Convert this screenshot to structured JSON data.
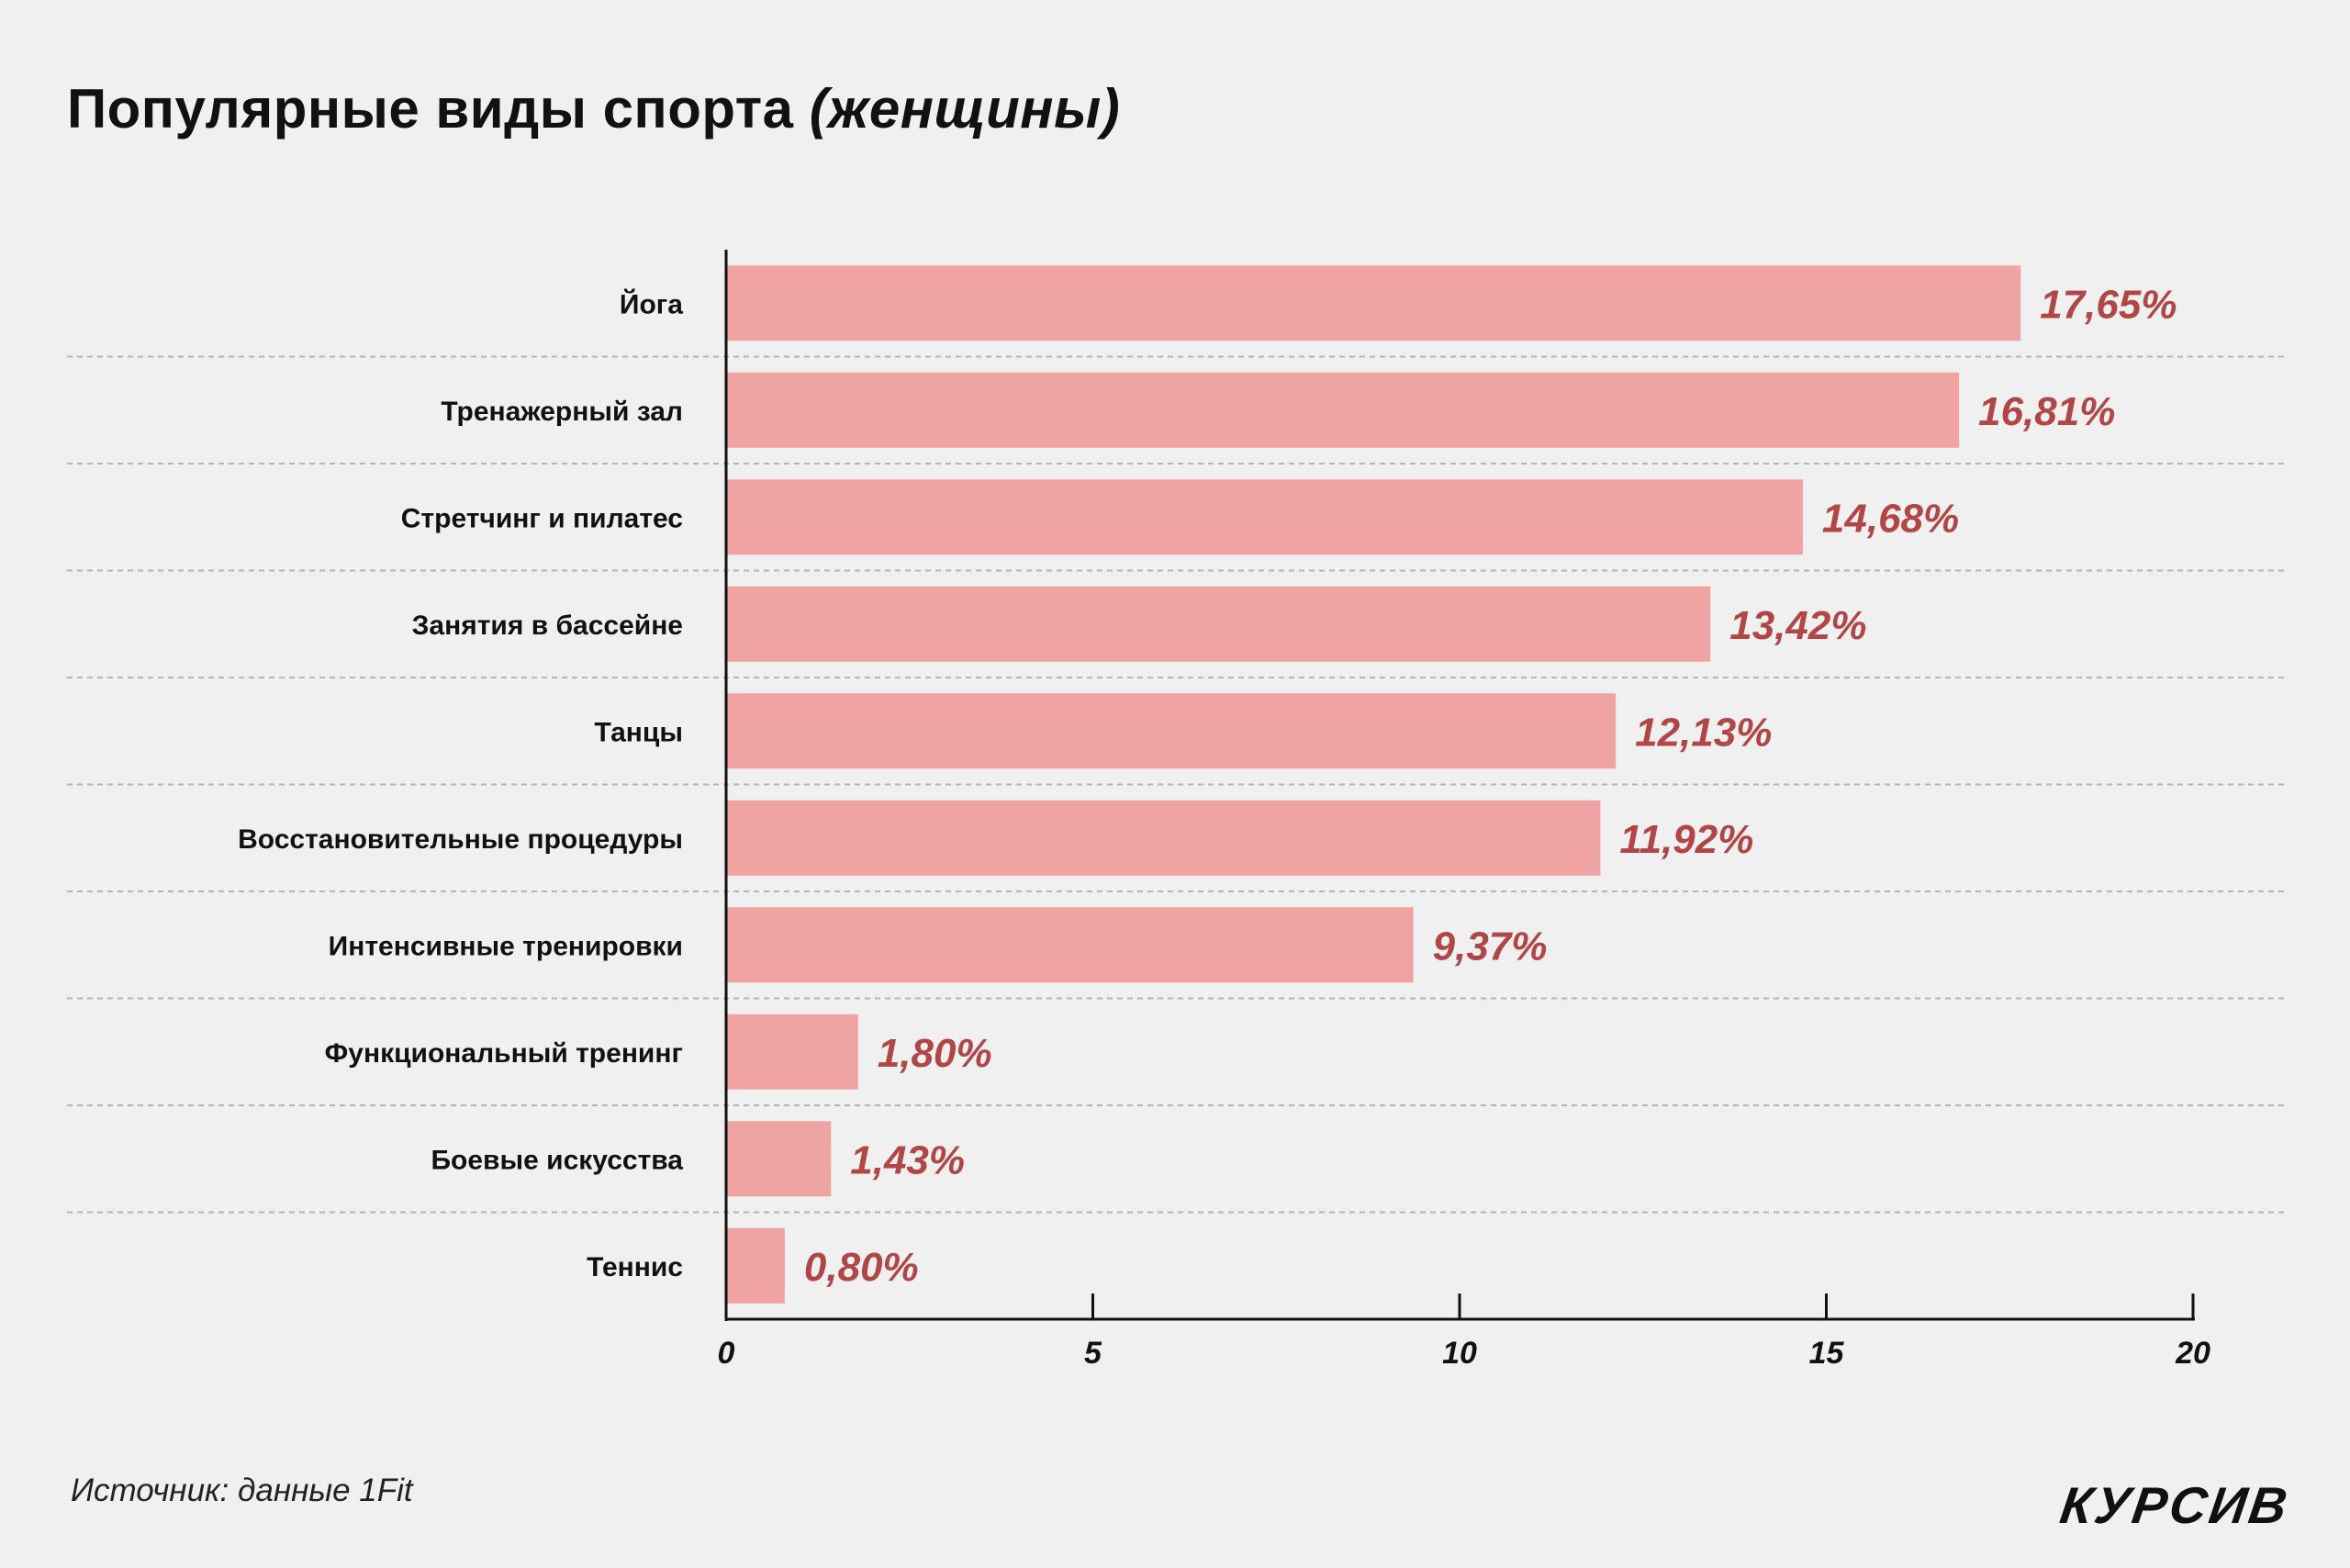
{
  "title": {
    "main": "Популярные виды спорта",
    "sub": "(женщины)"
  },
  "source": "Источник: данные 1Fit",
  "logo": "КУРСИВ",
  "colors": {
    "background": "#f0f0f0",
    "bar": "#efa3a2",
    "value_label": "#b04646",
    "axis": "#111111",
    "grid": "#b5b5b5"
  },
  "chart_data": {
    "type": "bar",
    "orientation": "horizontal",
    "title": "Популярные виды спорта (женщины)",
    "categories": [
      "Йога",
      "Тренажерный зал",
      "Стретчинг и пилатес",
      "Занятия в бассейне",
      "Танцы",
      "Восстановительные процедуры",
      "Интенсивные тренировки",
      "Функциональный тренинг",
      "Боевые искусства",
      "Теннис"
    ],
    "values": [
      17.65,
      16.81,
      14.68,
      13.42,
      12.13,
      11.92,
      9.37,
      1.8,
      1.43,
      0.8
    ],
    "value_labels": [
      "17,65%",
      "16,81%",
      "14,68%",
      "13,42%",
      "12,13%",
      "11,92%",
      "9,37%",
      "1,80%",
      "1,43%",
      "0,80%"
    ],
    "xlim": [
      0,
      20
    ],
    "xticks": [
      0,
      5,
      10,
      15,
      20
    ],
    "xtick_labels": [
      "0",
      "5",
      "10",
      "15",
      "20"
    ],
    "xlabel": "",
    "ylabel": "",
    "grid": "dashed row separators",
    "legend": "none"
  }
}
